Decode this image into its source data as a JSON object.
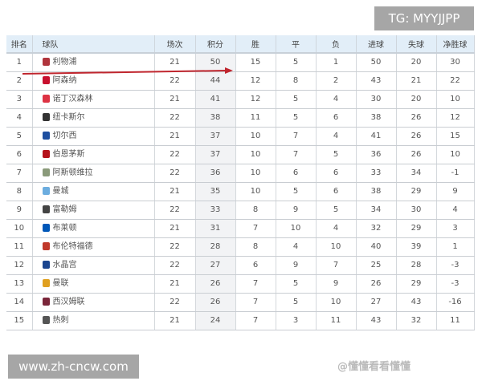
{
  "headers": [
    "排名",
    "球队",
    "场次",
    "积分",
    "胜",
    "平",
    "负",
    "进球",
    "失球",
    "净胜球"
  ],
  "rows": [
    {
      "rank": "1",
      "team": "利物浦",
      "color": "#b0343c",
      "p": "21",
      "pts": "50",
      "w": "15",
      "d": "5",
      "l": "1",
      "gf": "50",
      "ga": "20",
      "gd": "30"
    },
    {
      "rank": "2",
      "team": "阿森纳",
      "color": "#c8102e",
      "p": "22",
      "pts": "44",
      "w": "12",
      "d": "8",
      "l": "2",
      "gf": "43",
      "ga": "21",
      "gd": "22"
    },
    {
      "rank": "3",
      "team": "诺丁汉森林",
      "color": "#dd3344",
      "p": "21",
      "pts": "41",
      "w": "12",
      "d": "5",
      "l": "4",
      "gf": "30",
      "ga": "20",
      "gd": "10"
    },
    {
      "rank": "4",
      "team": "纽卡斯尔",
      "color": "#333333",
      "p": "22",
      "pts": "38",
      "w": "11",
      "d": "5",
      "l": "6",
      "gf": "38",
      "ga": "26",
      "gd": "12"
    },
    {
      "rank": "5",
      "team": "切尔西",
      "color": "#1e4fa0",
      "p": "21",
      "pts": "37",
      "w": "10",
      "d": "7",
      "l": "4",
      "gf": "41",
      "ga": "26",
      "gd": "15"
    },
    {
      "rank": "6",
      "team": "伯恩茅斯",
      "color": "#b5121b",
      "p": "22",
      "pts": "37",
      "w": "10",
      "d": "7",
      "l": "5",
      "gf": "36",
      "ga": "26",
      "gd": "10"
    },
    {
      "rank": "7",
      "team": "阿斯顿维拉",
      "color": "#8a9a7a",
      "p": "22",
      "pts": "36",
      "w": "10",
      "d": "6",
      "l": "6",
      "gf": "33",
      "ga": "34",
      "gd": "-1"
    },
    {
      "rank": "8",
      "team": "曼城",
      "color": "#6caddf",
      "p": "21",
      "pts": "35",
      "w": "10",
      "d": "5",
      "l": "6",
      "gf": "38",
      "ga": "29",
      "gd": "9"
    },
    {
      "rank": "9",
      "team": "富勒姆",
      "color": "#444444",
      "p": "22",
      "pts": "33",
      "w": "8",
      "d": "9",
      "l": "5",
      "gf": "34",
      "ga": "30",
      "gd": "4"
    },
    {
      "rank": "10",
      "team": "布莱顿",
      "color": "#0057b8",
      "p": "21",
      "pts": "31",
      "w": "7",
      "d": "10",
      "l": "4",
      "gf": "32",
      "ga": "29",
      "gd": "3"
    },
    {
      "rank": "11",
      "team": "布伦特福德",
      "color": "#c0392b",
      "p": "22",
      "pts": "28",
      "w": "8",
      "d": "4",
      "l": "10",
      "gf": "40",
      "ga": "39",
      "gd": "1"
    },
    {
      "rank": "12",
      "team": "水晶宫",
      "color": "#1b458f",
      "p": "22",
      "pts": "27",
      "w": "6",
      "d": "9",
      "l": "7",
      "gf": "25",
      "ga": "28",
      "gd": "-3"
    },
    {
      "rank": "13",
      "team": "曼联",
      "color": "#e0a020",
      "p": "21",
      "pts": "26",
      "w": "7",
      "d": "5",
      "l": "9",
      "gf": "26",
      "ga": "29",
      "gd": "-3"
    },
    {
      "rank": "14",
      "team": "西汉姆联",
      "color": "#7a263a",
      "p": "22",
      "pts": "26",
      "w": "7",
      "d": "5",
      "l": "10",
      "gf": "27",
      "ga": "43",
      "gd": "-16"
    },
    {
      "rank": "15",
      "team": "热刺",
      "color": "#555555",
      "p": "21",
      "pts": "24",
      "w": "7",
      "d": "3",
      "l": "11",
      "gf": "43",
      "ga": "32",
      "gd": "11"
    }
  ],
  "overlay": {
    "tg": "TG: MYYJJPP",
    "site": "www.zh-cncw.com",
    "watermark": "@懂懂看看懂懂"
  },
  "arrow_color": "#c0262e"
}
